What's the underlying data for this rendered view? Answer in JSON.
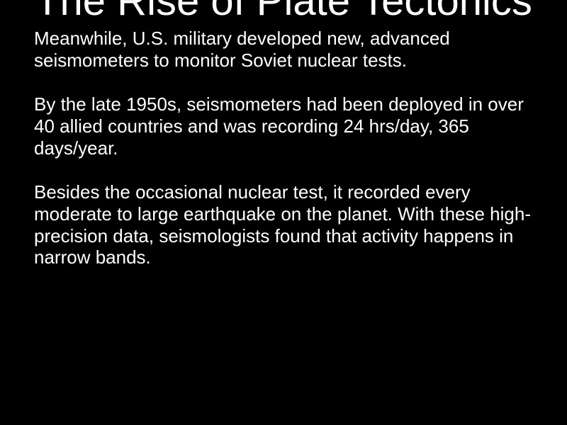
{
  "slide": {
    "title": "The Rise of Plate Tectonics",
    "paragraphs": [
      "Meanwhile, U.S. military developed new, advanced seismometers to monitor Soviet nuclear tests.",
      "By the late 1950s, seismometers had been deployed in over 40 allied countries and was recording 24 hrs/day, 365 days/year.",
      "Besides the occasional nuclear test, it recorded every moderate to large earthquake on the planet. With these high-precision data, seismologists found that activity happens in narrow bands."
    ],
    "colors": {
      "background": "#000000",
      "text": "#ffffff"
    },
    "title_fontsize": 58,
    "body_fontsize": 26
  }
}
